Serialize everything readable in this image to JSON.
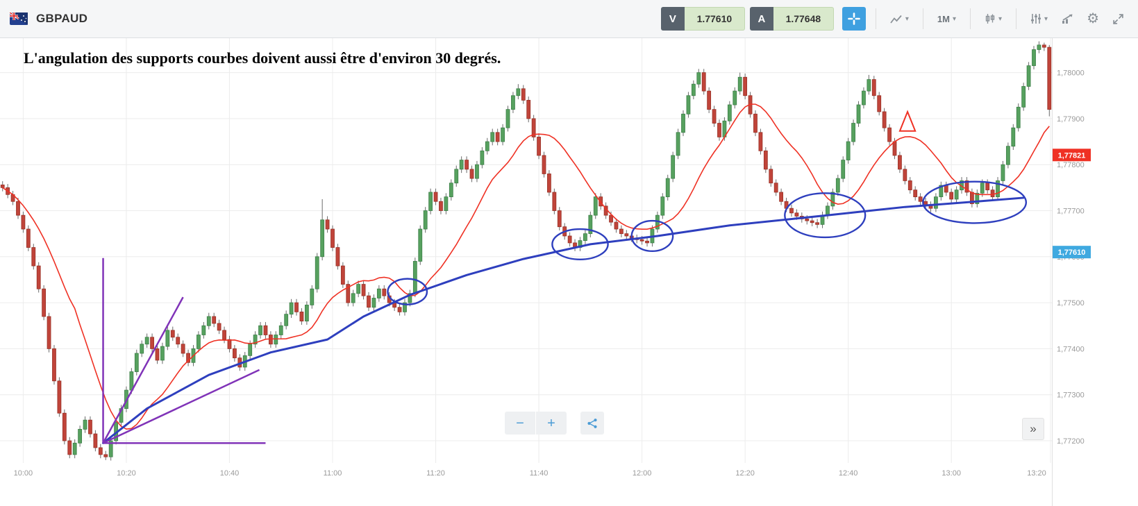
{
  "topbar": {
    "symbol": "GBPAUD",
    "sell_label": "V",
    "sell_value": "1.77610",
    "buy_label": "A",
    "buy_value": "1.77648",
    "timeframe": "1M"
  },
  "icons": {
    "caret_down": "▾",
    "gear": "⚙",
    "collapse": "»",
    "zoom_in": "+",
    "zoom_out": "−"
  },
  "annotation_text": "L'angulation des supports courbes doivent aussi être d'environ 30 degrés.",
  "chart_data": {
    "type": "candlestick",
    "symbol": "GBPAUD",
    "interval": "1M",
    "start_time": "09:56",
    "minutes_per_candle": 1,
    "price_scale": {
      "base": 1.77,
      "v_unit": 1e-05,
      "note": "price = base + v * v_unit"
    },
    "ylim_v": [
      140,
      1075
    ],
    "x_tick_labels": [
      "10:00",
      "10:20",
      "10:40",
      "11:00",
      "11:20",
      "11:40",
      "12:00",
      "12:20",
      "12:40",
      "13:00",
      "13:20"
    ],
    "x_tick_indices": [
      4,
      24,
      44,
      64,
      84,
      104,
      124,
      144,
      164,
      184,
      204
    ],
    "y_ticks": [
      {
        "v": 1000,
        "label": "1,78000"
      },
      {
        "v": 900,
        "label": "1,77900"
      },
      {
        "v": 800,
        "label": "1,77800"
      },
      {
        "v": 700,
        "label": "1,77700"
      },
      {
        "v": 600,
        "label": "1,77600"
      },
      {
        "v": 500,
        "label": "1,77500"
      },
      {
        "v": 400,
        "label": "1,77400"
      },
      {
        "v": 300,
        "label": "1,77300"
      },
      {
        "v": 200,
        "label": "1,77200"
      }
    ],
    "closes_v": [
      750,
      735,
      720,
      690,
      660,
      620,
      580,
      530,
      470,
      400,
      330,
      260,
      200,
      170,
      195,
      225,
      245,
      215,
      185,
      170,
      165,
      200,
      240,
      270,
      310,
      350,
      390,
      410,
      425,
      400,
      375,
      405,
      440,
      425,
      410,
      390,
      370,
      400,
      430,
      450,
      470,
      455,
      440,
      420,
      400,
      380,
      360,
      385,
      410,
      430,
      450,
      430,
      410,
      430,
      450,
      475,
      500,
      480,
      460,
      495,
      530,
      600,
      680,
      660,
      620,
      580,
      540,
      500,
      520,
      540,
      515,
      490,
      510,
      530,
      515,
      500,
      490,
      480,
      500,
      520,
      590,
      660,
      700,
      740,
      720,
      700,
      730,
      760,
      790,
      810,
      790,
      770,
      800,
      830,
      850,
      870,
      850,
      880,
      920,
      950,
      965,
      940,
      900,
      860,
      820,
      780,
      740,
      700,
      665,
      645,
      630,
      620,
      635,
      650,
      690,
      730,
      710,
      690,
      675,
      660,
      650,
      645,
      640,
      637,
      634,
      630,
      660,
      690,
      730,
      770,
      820,
      870,
      910,
      950,
      975,
      1000,
      960,
      920,
      890,
      860,
      895,
      930,
      960,
      990,
      950,
      910,
      870,
      830,
      790,
      760,
      740,
      720,
      705,
      695,
      688,
      682,
      678,
      674,
      670,
      690,
      710,
      740,
      770,
      810,
      850,
      890,
      930,
      960,
      985,
      950,
      915,
      880,
      850,
      820,
      790,
      765,
      745,
      730,
      720,
      712,
      705,
      730,
      755,
      740,
      725,
      745,
      765,
      740,
      715,
      738,
      760,
      745,
      730,
      765,
      800,
      840,
      880,
      925,
      970,
      1015,
      1050,
      1060,
      1055,
      920
    ],
    "wick_v": 8,
    "wick_overrides": {
      "13": {
        "low": 162
      },
      "20": {
        "low": 158
      },
      "62": {
        "high": 725
      },
      "100": {
        "high": 975
      },
      "135": {
        "high": 1008
      },
      "143": {
        "high": 1000
      },
      "168": {
        "high": 995
      },
      "202": {
        "high": 1065
      },
      "203": {
        "high": 1060,
        "low": 905
      }
    },
    "ma": {
      "type": "sma",
      "period": 15,
      "color": "#ef3124"
    },
    "last_price_tag": {
      "label": "1,77821",
      "v": 821,
      "color": "#ef3124"
    },
    "bid_tag": {
      "label": "1,77610",
      "v": 610,
      "color": "#3fa9e0"
    },
    "colors": {
      "up": "#57a15f",
      "up_border": "#3e8049",
      "down": "#c0443a",
      "down_border": "#993227",
      "wick": "#6a6a6a",
      "grid": "#ececec",
      "axis_text": "#9a9a9a",
      "separator": "#e0e0e0"
    },
    "drawings": {
      "support_curve": {
        "color": "#2e3fbe",
        "width": 3,
        "points": [
          [
            19.5,
            195
          ],
          [
            28,
            270
          ],
          [
            40,
            343
          ],
          [
            52,
            392
          ],
          [
            63,
            420
          ],
          [
            70,
            470
          ],
          [
            79,
            517
          ],
          [
            90,
            560
          ],
          [
            101,
            595
          ],
          [
            114,
            627
          ],
          [
            127,
            645
          ],
          [
            141,
            668
          ],
          [
            160,
            690
          ],
          [
            175,
            708
          ],
          [
            189,
            720
          ],
          [
            198,
            728
          ]
        ]
      },
      "ellipses": [
        {
          "i": 78.5,
          "v": 524,
          "ri": 3.8,
          "rv": 28
        },
        {
          "i": 112,
          "v": 627,
          "ri": 5.4,
          "rv": 33
        },
        {
          "i": 126,
          "v": 645,
          "ri": 4.0,
          "rv": 33
        },
        {
          "i": 159.5,
          "v": 690,
          "ri": 7.8,
          "rv": 48
        },
        {
          "i": 188.5,
          "v": 718,
          "ri": 10.0,
          "rv": 45
        }
      ],
      "angle_lines": {
        "color": "#8033b8",
        "width": 2.5,
        "vertical": [
          [
            19.5,
            597
          ],
          [
            19.5,
            195
          ]
        ],
        "horizontal": [
          [
            19.5,
            195
          ],
          [
            51,
            195
          ]
        ],
        "steep": [
          [
            19.5,
            195
          ],
          [
            35,
            512
          ]
        ],
        "shallow": [
          [
            19.5,
            195
          ],
          [
            49.8,
            354
          ]
        ]
      },
      "triangle": {
        "color": "#ef3124",
        "i": 175.5,
        "apex_v": 915,
        "base_v": 873,
        "half_width_i": 1.5
      }
    }
  }
}
